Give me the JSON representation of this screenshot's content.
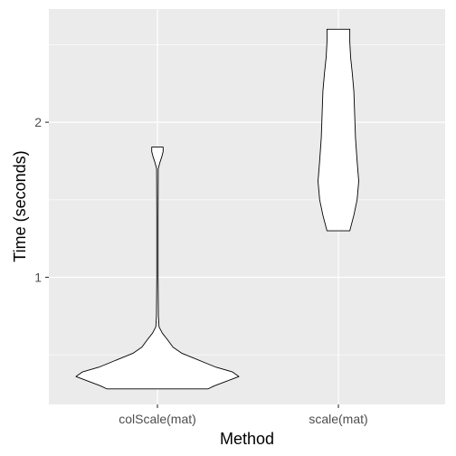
{
  "chart_data": {
    "type": "violin",
    "xlabel": "Method",
    "ylabel": "Time (seconds)",
    "categories": [
      "colScale(mat)",
      "scale(mat)"
    ],
    "y_ticks": [
      1,
      2
    ],
    "ylim": [
      0.18,
      2.73
    ],
    "grid": true,
    "colors": {
      "panel": "#ebebeb",
      "grid": "#ffffff",
      "fill": "#ffffff",
      "outline": "#000000",
      "tick_label": "#4d4d4d"
    },
    "series": [
      {
        "category": "colScale(mat)",
        "profile": [
          {
            "y": 0.28,
            "d": 0.62
          },
          {
            "y": 0.3,
            "d": 0.7
          },
          {
            "y": 0.33,
            "d": 0.85
          },
          {
            "y": 0.36,
            "d": 1.0
          },
          {
            "y": 0.39,
            "d": 0.92
          },
          {
            "y": 0.42,
            "d": 0.72
          },
          {
            "y": 0.45,
            "d": 0.58
          },
          {
            "y": 0.48,
            "d": 0.44
          },
          {
            "y": 0.51,
            "d": 0.3
          },
          {
            "y": 0.55,
            "d": 0.19
          },
          {
            "y": 0.6,
            "d": 0.12
          },
          {
            "y": 0.64,
            "d": 0.06
          },
          {
            "y": 0.68,
            "d": 0.02
          },
          {
            "y": 0.75,
            "d": 0.012
          },
          {
            "y": 1.0,
            "d": 0.008
          },
          {
            "y": 1.4,
            "d": 0.008
          },
          {
            "y": 1.7,
            "d": 0.01
          },
          {
            "y": 1.74,
            "d": 0.03
          },
          {
            "y": 1.78,
            "d": 0.055
          },
          {
            "y": 1.81,
            "d": 0.07
          },
          {
            "y": 1.84,
            "d": 0.07
          }
        ]
      },
      {
        "category": "scale(mat)",
        "profile": [
          {
            "y": 1.3,
            "d": 0.14
          },
          {
            "y": 1.4,
            "d": 0.19
          },
          {
            "y": 1.5,
            "d": 0.23
          },
          {
            "y": 1.62,
            "d": 0.25
          },
          {
            "y": 1.75,
            "d": 0.23
          },
          {
            "y": 1.9,
            "d": 0.21
          },
          {
            "y": 2.05,
            "d": 0.2
          },
          {
            "y": 2.2,
            "d": 0.19
          },
          {
            "y": 2.32,
            "d": 0.17
          },
          {
            "y": 2.42,
            "d": 0.15
          },
          {
            "y": 2.52,
            "d": 0.14
          },
          {
            "y": 2.6,
            "d": 0.14
          }
        ]
      }
    ]
  }
}
